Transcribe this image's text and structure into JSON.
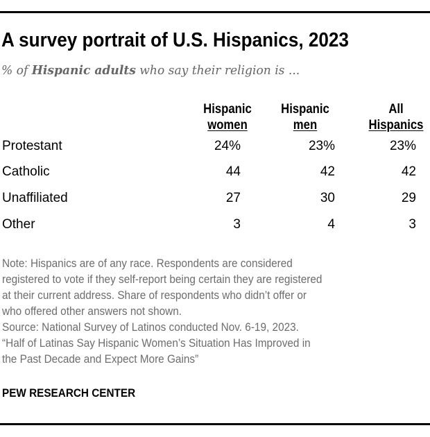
{
  "chart_data": {
    "type": "table",
    "title": "A survey portrait of U.S. Hispanics, 2023",
    "subtitle_prefix": "% of ",
    "subtitle_bold": "Hispanic adults",
    "subtitle_suffix": " who say their religion is ...",
    "columns": [
      {
        "line1": "Hispanic",
        "line2": "women"
      },
      {
        "line1": "Hispanic",
        "line2": "men"
      },
      {
        "line1": "All",
        "line2": "Hispanics"
      }
    ],
    "rows": [
      {
        "label": "Protestant",
        "values": [
          "24%",
          "23%",
          "23%"
        ]
      },
      {
        "label": "Catholic",
        "values": [
          "44",
          "42",
          "42"
        ]
      },
      {
        "label": "Unaffiliated",
        "values": [
          "27",
          "30",
          "29"
        ]
      },
      {
        "label": "Other",
        "values": [
          "3",
          "4",
          "3"
        ]
      }
    ]
  },
  "notes": [
    "Note: Hispanics are of any race. Respondents are considered",
    "registered to vote if they self-report being certain they are registered",
    "at their current address. Share of respondents who didn’t offer or",
    "who offered other answers not shown.",
    "Source: National Survey of Latinos conducted Nov. 6-19, 2023.",
    "“Half of Latinas Say Hispanic Women’s Situation Has Improved in",
    "the Past Decade and Expect More Gains”"
  ],
  "brand": "PEW RESEARCH CENTER"
}
